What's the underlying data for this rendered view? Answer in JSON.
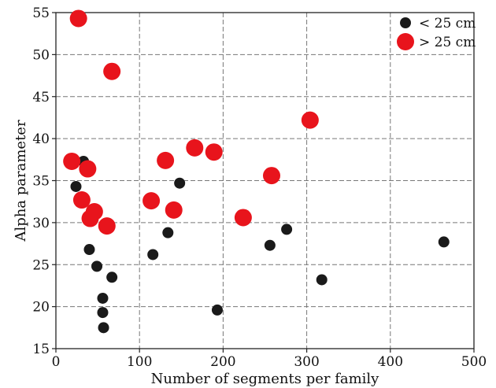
{
  "chart_data": {
    "type": "scatter",
    "xlabel": "Number of segments per family",
    "ylabel": "Alpha parameter",
    "xlim": [
      0,
      500
    ],
    "ylim": [
      15,
      55
    ],
    "x_ticks": [
      0,
      100,
      200,
      300,
      400,
      500
    ],
    "y_ticks": [
      15,
      20,
      25,
      30,
      35,
      40,
      45,
      50,
      55
    ],
    "grid": true,
    "legend_position": "top-right",
    "series": [
      {
        "name": "< 25 cm",
        "color": "#1a1a1a",
        "points": [
          [
            24,
            34.3
          ],
          [
            33,
            37.3
          ],
          [
            40,
            26.8
          ],
          [
            49,
            24.8
          ],
          [
            56,
            21.0
          ],
          [
            56,
            19.3
          ],
          [
            57,
            17.5
          ],
          [
            67,
            23.5
          ],
          [
            116,
            26.2
          ],
          [
            134,
            28.8
          ],
          [
            148,
            34.7
          ],
          [
            193,
            19.6
          ],
          [
            256,
            27.3
          ],
          [
            276,
            29.2
          ],
          [
            318,
            23.2
          ],
          [
            464,
            27.7
          ]
        ]
      },
      {
        "name": "> 25 cm",
        "color": "#e8141c",
        "points": [
          [
            27,
            54.3
          ],
          [
            67,
            48.0
          ],
          [
            19,
            37.3
          ],
          [
            38,
            36.4
          ],
          [
            31,
            32.7
          ],
          [
            46,
            31.3
          ],
          [
            41,
            30.5
          ],
          [
            61,
            29.6
          ],
          [
            114,
            32.6
          ],
          [
            131,
            37.4
          ],
          [
            141,
            31.5
          ],
          [
            166,
            38.9
          ],
          [
            189,
            38.4
          ],
          [
            224,
            30.6
          ],
          [
            258,
            35.6
          ],
          [
            304,
            42.2
          ]
        ]
      }
    ]
  }
}
